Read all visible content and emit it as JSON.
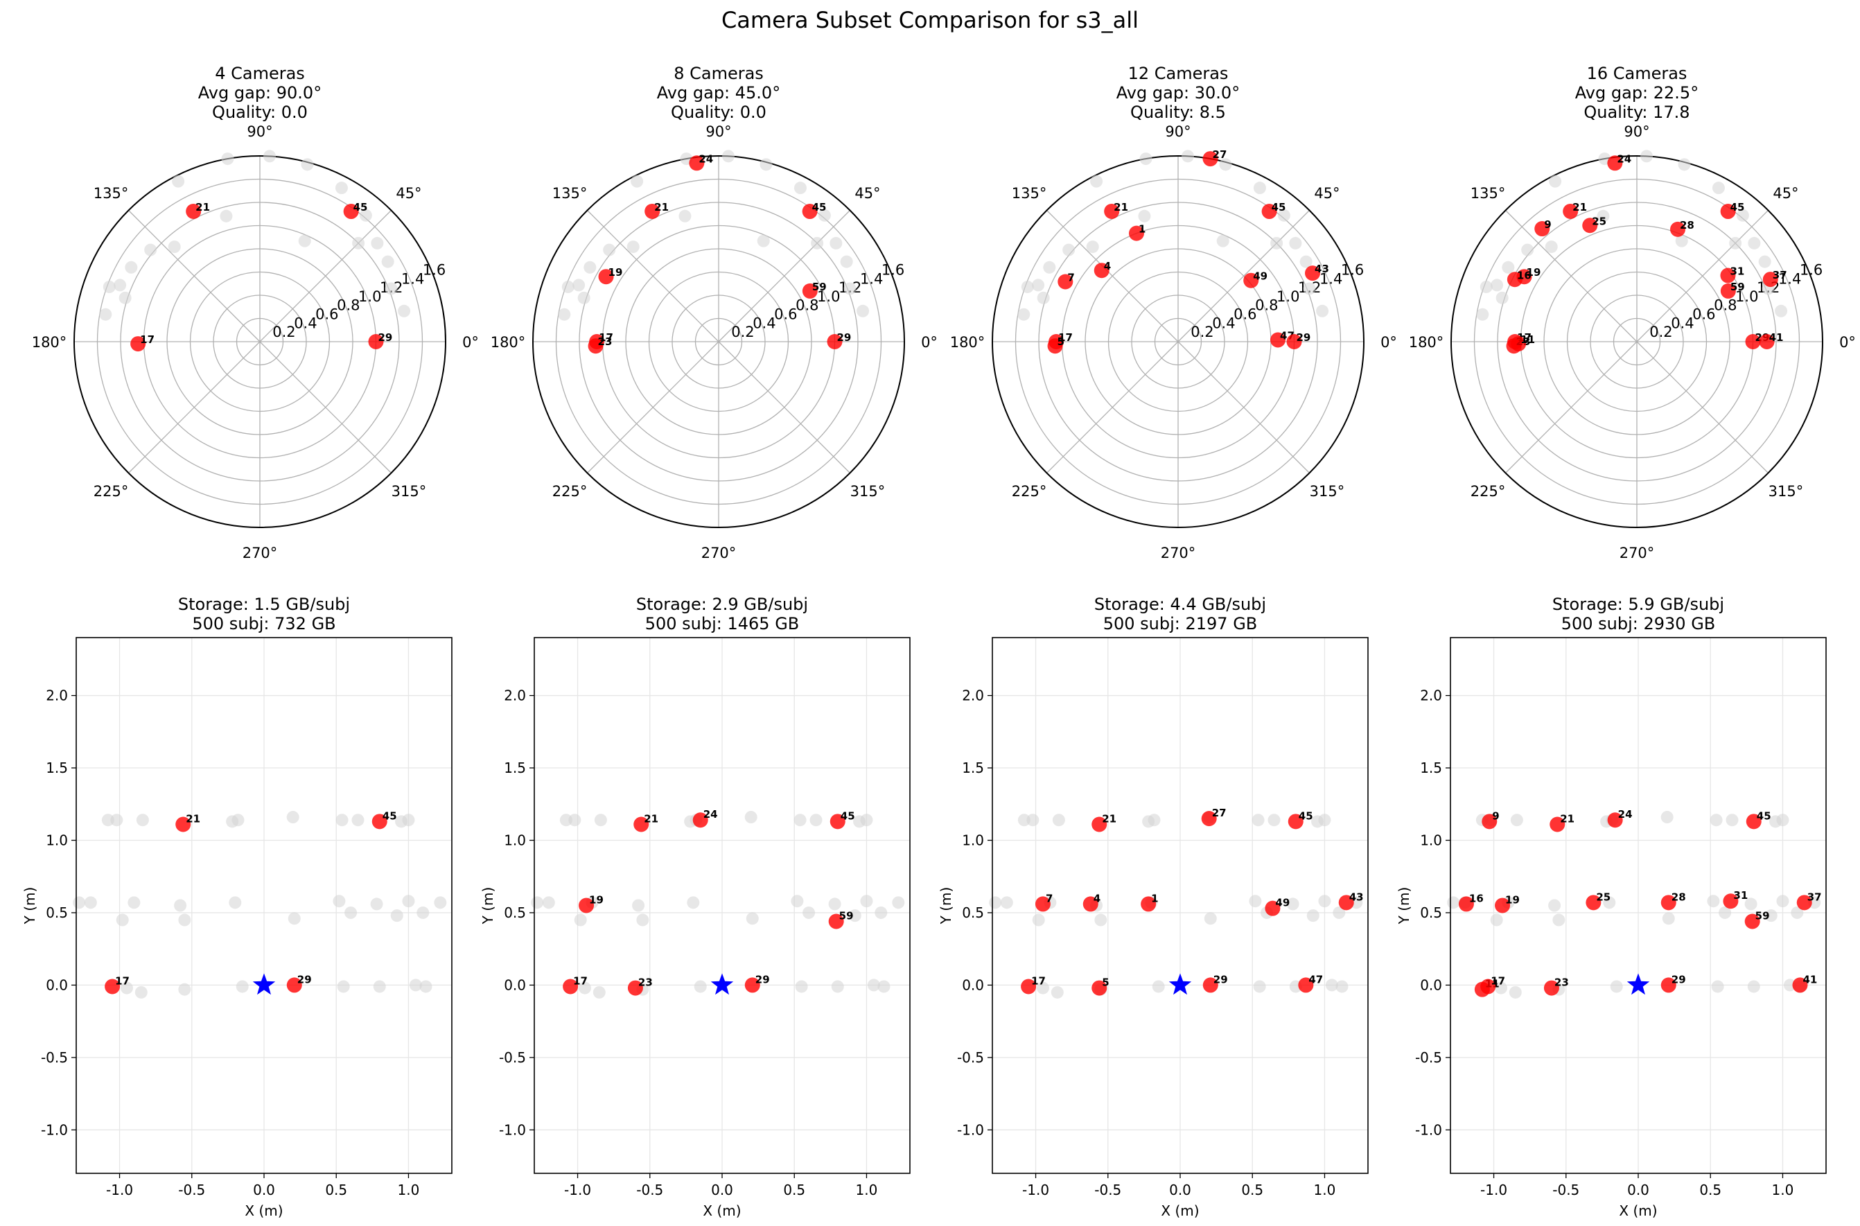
{
  "suptitle": "Camera Subset Comparison for s3_all",
  "colors": {
    "selected": "#ff0000",
    "unselected": "#d3d3d3",
    "subject": "#0000ff",
    "grid": "#b0b0b0"
  },
  "chart_data": [
    {
      "type": "scatter",
      "subtype": "polar",
      "title_lines": [
        "4 Cameras",
        "Avg gap: 90.0°",
        "Quality: 0.0"
      ],
      "theta_ticks": [
        "0°",
        "45°",
        "90°",
        "135°",
        "180°",
        "225°",
        "270°",
        "315°"
      ],
      "r_ticks": [
        "0.2",
        "0.4",
        "0.6",
        "0.8",
        "1.0",
        "1.2",
        "1.4",
        "1.6"
      ],
      "rlim": [
        0,
        1.6
      ],
      "selected": [
        {
          "id": "21",
          "theta": 117,
          "r": 1.26
        },
        {
          "id": "45",
          "theta": 55,
          "r": 1.37
        },
        {
          "id": "17",
          "theta": 181,
          "r": 1.05
        },
        {
          "id": "29",
          "theta": 0,
          "r": 1.0
        }
      ]
    },
    {
      "type": "scatter",
      "subtype": "polar",
      "title_lines": [
        "8 Cameras",
        "Avg gap: 45.0°",
        "Quality: 0.0"
      ],
      "theta_ticks": [
        "0°",
        "45°",
        "90°",
        "135°",
        "180°",
        "225°",
        "270°",
        "315°"
      ],
      "r_ticks": [
        "0.2",
        "0.4",
        "0.6",
        "0.8",
        "1.0",
        "1.2",
        "1.4",
        "1.6"
      ],
      "rlim": [
        0,
        1.6
      ],
      "selected": [
        {
          "id": "21",
          "theta": 117,
          "r": 1.26
        },
        {
          "id": "24",
          "theta": 97,
          "r": 1.55
        },
        {
          "id": "45",
          "theta": 55,
          "r": 1.37
        },
        {
          "id": "19",
          "theta": 150,
          "r": 1.12
        },
        {
          "id": "59",
          "theta": 29,
          "r": 0.9
        },
        {
          "id": "17",
          "theta": 180,
          "r": 1.05
        },
        {
          "id": "23",
          "theta": 182,
          "r": 1.06
        },
        {
          "id": "29",
          "theta": 0,
          "r": 1.0
        }
      ]
    },
    {
      "type": "scatter",
      "subtype": "polar",
      "title_lines": [
        "12 Cameras",
        "Avg gap: 30.0°",
        "Quality: 8.5"
      ],
      "theta_ticks": [
        "0°",
        "45°",
        "90°",
        "135°",
        "180°",
        "225°",
        "270°",
        "315°"
      ],
      "r_ticks": [
        "0.2",
        "0.4",
        "0.6",
        "0.8",
        "1.0",
        "1.2",
        "1.4",
        "1.6"
      ],
      "rlim": [
        0,
        1.6
      ],
      "selected": [
        {
          "id": "27",
          "theta": 80,
          "r": 1.6
        },
        {
          "id": "21",
          "theta": 117,
          "r": 1.26
        },
        {
          "id": "1",
          "theta": 111,
          "r": 1.0
        },
        {
          "id": "45",
          "theta": 55,
          "r": 1.37
        },
        {
          "id": "4",
          "theta": 137,
          "r": 0.9
        },
        {
          "id": "49",
          "theta": 40,
          "r": 0.82
        },
        {
          "id": "7",
          "theta": 152,
          "r": 1.1
        },
        {
          "id": "43",
          "theta": 27,
          "r": 1.3
        },
        {
          "id": "17",
          "theta": 180,
          "r": 1.05
        },
        {
          "id": "5",
          "theta": 182,
          "r": 1.06
        },
        {
          "id": "47",
          "theta": 1,
          "r": 0.86
        },
        {
          "id": "29",
          "theta": 0,
          "r": 1.0
        }
      ]
    },
    {
      "type": "scatter",
      "subtype": "polar",
      "title_lines": [
        "16 Cameras",
        "Avg gap: 22.5°",
        "Quality: 17.8"
      ],
      "theta_ticks": [
        "0°",
        "45°",
        "90°",
        "135°",
        "180°",
        "225°",
        "270°",
        "315°"
      ],
      "r_ticks": [
        "0.2",
        "0.4",
        "0.6",
        "0.8",
        "1.0",
        "1.2",
        "1.4",
        "1.6"
      ],
      "rlim": [
        0,
        1.6
      ],
      "selected": [
        {
          "id": "24",
          "theta": 97,
          "r": 1.55
        },
        {
          "id": "21",
          "theta": 117,
          "r": 1.26
        },
        {
          "id": "25",
          "theta": 112,
          "r": 1.08
        },
        {
          "id": "28",
          "theta": 70,
          "r": 1.03
        },
        {
          "id": "45",
          "theta": 55,
          "r": 1.37
        },
        {
          "id": "9",
          "theta": 130,
          "r": 1.27
        },
        {
          "id": "31",
          "theta": 36,
          "r": 0.97
        },
        {
          "id": "19",
          "theta": 150,
          "r": 1.12
        },
        {
          "id": "16",
          "theta": 153,
          "r": 1.18
        },
        {
          "id": "59",
          "theta": 29,
          "r": 0.9
        },
        {
          "id": "37",
          "theta": 25,
          "r": 1.27
        },
        {
          "id": "17",
          "theta": 180,
          "r": 1.05
        },
        {
          "id": "23",
          "theta": 182,
          "r": 1.06
        },
        {
          "id": "11",
          "theta": 181,
          "r": 1.02
        },
        {
          "id": "29",
          "theta": 0,
          "r": 1.0
        },
        {
          "id": "41",
          "theta": 0,
          "r": 1.12
        }
      ]
    },
    {
      "type": "scatter",
      "title_lines": [
        "Storage: 1.5 GB/subj",
        "500 subj: 732 GB"
      ],
      "xlabel": "X (m)",
      "ylabel": "Y (m)",
      "xlim": [
        -1.3,
        1.3
      ],
      "ylim": [
        -1.3,
        2.4
      ],
      "xticks": [
        "-1.0",
        "-0.5",
        "0.0",
        "0.5",
        "1.0"
      ],
      "yticks": [
        "-1.0",
        "-0.5",
        "0.0",
        "0.5",
        "1.0",
        "1.5",
        "2.0"
      ],
      "subject": {
        "x": 0.0,
        "y": 0.0
      },
      "selected": [
        {
          "id": "21",
          "x": -0.56,
          "y": 1.11
        },
        {
          "id": "45",
          "x": 0.8,
          "y": 1.13
        },
        {
          "id": "17",
          "x": -1.05,
          "y": -0.01
        },
        {
          "id": "29",
          "x": 0.21,
          "y": 0.0
        }
      ]
    },
    {
      "type": "scatter",
      "title_lines": [
        "Storage: 2.9 GB/subj",
        "500 subj: 1465 GB"
      ],
      "xlabel": "X (m)",
      "ylabel": "Y (m)",
      "xlim": [
        -1.3,
        1.3
      ],
      "ylim": [
        -1.3,
        2.4
      ],
      "xticks": [
        "-1.0",
        "-0.5",
        "0.0",
        "0.5",
        "1.0"
      ],
      "yticks": [
        "-1.0",
        "-0.5",
        "0.0",
        "0.5",
        "1.0",
        "1.5",
        "2.0"
      ],
      "subject": {
        "x": 0.0,
        "y": 0.0
      },
      "selected": [
        {
          "id": "21",
          "x": -0.56,
          "y": 1.11
        },
        {
          "id": "24",
          "x": -0.15,
          "y": 1.14
        },
        {
          "id": "45",
          "x": 0.8,
          "y": 1.13
        },
        {
          "id": "19",
          "x": -0.94,
          "y": 0.55
        },
        {
          "id": "59",
          "x": 0.79,
          "y": 0.44
        },
        {
          "id": "17",
          "x": -1.05,
          "y": -0.01
        },
        {
          "id": "23",
          "x": -0.6,
          "y": -0.02
        },
        {
          "id": "29",
          "x": 0.21,
          "y": 0.0
        }
      ]
    },
    {
      "type": "scatter",
      "title_lines": [
        "Storage: 4.4 GB/subj",
        "500 subj: 2197 GB"
      ],
      "xlabel": "X (m)",
      "ylabel": "Y (m)",
      "xlim": [
        -1.3,
        1.3
      ],
      "ylim": [
        -1.3,
        2.4
      ],
      "xticks": [
        "-1.0",
        "-0.5",
        "0.0",
        "0.5",
        "1.0"
      ],
      "yticks": [
        "-1.0",
        "-0.5",
        "0.0",
        "0.5",
        "1.0",
        "1.5",
        "2.0"
      ],
      "subject": {
        "x": 0.0,
        "y": 0.0
      },
      "selected": [
        {
          "id": "21",
          "x": -0.56,
          "y": 1.11
        },
        {
          "id": "27",
          "x": 0.2,
          "y": 1.15
        },
        {
          "id": "45",
          "x": 0.8,
          "y": 1.13
        },
        {
          "id": "7",
          "x": -0.95,
          "y": 0.56
        },
        {
          "id": "4",
          "x": -0.62,
          "y": 0.56
        },
        {
          "id": "1",
          "x": -0.22,
          "y": 0.56
        },
        {
          "id": "49",
          "x": 0.64,
          "y": 0.53
        },
        {
          "id": "43",
          "x": 1.15,
          "y": 0.57
        },
        {
          "id": "17",
          "x": -1.05,
          "y": -0.01
        },
        {
          "id": "5",
          "x": -0.56,
          "y": -0.02
        },
        {
          "id": "29",
          "x": 0.21,
          "y": 0.0
        },
        {
          "id": "47",
          "x": 0.87,
          "y": 0.0
        }
      ]
    },
    {
      "type": "scatter",
      "title_lines": [
        "Storage: 5.9 GB/subj",
        "500 subj: 2930 GB"
      ],
      "xlabel": "X (m)",
      "ylabel": "Y (m)",
      "xlim": [
        -1.3,
        1.3
      ],
      "ylim": [
        -1.3,
        2.4
      ],
      "xticks": [
        "-1.0",
        "-0.5",
        "0.0",
        "0.5",
        "1.0"
      ],
      "yticks": [
        "-1.0",
        "-0.5",
        "0.0",
        "0.5",
        "1.0",
        "1.5",
        "2.0"
      ],
      "subject": {
        "x": 0.0,
        "y": 0.0
      },
      "selected": [
        {
          "id": "9",
          "x": -1.03,
          "y": 1.13
        },
        {
          "id": "21",
          "x": -0.56,
          "y": 1.11
        },
        {
          "id": "24",
          "x": -0.16,
          "y": 1.14
        },
        {
          "id": "45",
          "x": 0.8,
          "y": 1.13
        },
        {
          "id": "16",
          "x": -1.19,
          "y": 0.56
        },
        {
          "id": "19",
          "x": -0.94,
          "y": 0.55
        },
        {
          "id": "25",
          "x": -0.31,
          "y": 0.57
        },
        {
          "id": "28",
          "x": 0.21,
          "y": 0.57
        },
        {
          "id": "31",
          "x": 0.64,
          "y": 0.58
        },
        {
          "id": "37",
          "x": 1.15,
          "y": 0.57
        },
        {
          "id": "59",
          "x": 0.79,
          "y": 0.44
        },
        {
          "id": "11",
          "x": -1.08,
          "y": -0.03
        },
        {
          "id": "17",
          "x": -1.04,
          "y": -0.01
        },
        {
          "id": "23",
          "x": -0.6,
          "y": -0.02
        },
        {
          "id": "29",
          "x": 0.21,
          "y": 0.0
        },
        {
          "id": "41",
          "x": 1.12,
          "y": 0.0
        }
      ]
    }
  ]
}
